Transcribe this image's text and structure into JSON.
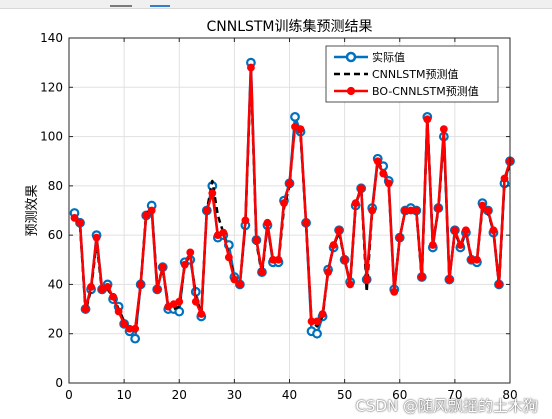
{
  "window": {
    "watermark": "CSDN @随风飘摇的土木狗"
  },
  "chart_data": {
    "type": "line",
    "title": "CNNLSTM训练集预测结果",
    "xlabel": "",
    "ylabel": "预测效果",
    "xlim": [
      0,
      80
    ],
    "ylim": [
      0,
      140
    ],
    "xticks": [
      0,
      10,
      20,
      30,
      40,
      50,
      60,
      70,
      80
    ],
    "yticks": [
      0,
      20,
      40,
      60,
      80,
      100,
      120,
      140
    ],
    "grid": true,
    "legend_position": "top-right",
    "x": [
      1,
      2,
      3,
      4,
      5,
      6,
      7,
      8,
      9,
      10,
      11,
      12,
      13,
      14,
      15,
      16,
      17,
      18,
      19,
      20,
      21,
      22,
      23,
      24,
      25,
      26,
      27,
      28,
      29,
      30,
      31,
      32,
      33,
      34,
      35,
      36,
      37,
      38,
      39,
      40,
      41,
      42,
      43,
      44,
      45,
      46,
      47,
      48,
      49,
      50,
      51,
      52,
      53,
      54,
      55,
      56,
      57,
      58,
      59,
      60,
      61,
      62,
      63,
      64,
      65,
      66,
      67,
      68,
      69,
      70,
      71,
      72,
      73,
      74,
      75,
      76,
      77,
      78,
      79,
      80
    ],
    "series": [
      {
        "name": "实际值",
        "color": "#0072BD",
        "style": "solid-circle-open",
        "values": [
          69,
          65,
          30,
          38,
          60,
          38,
          40,
          34,
          31,
          24,
          21,
          18,
          40,
          68,
          72,
          38,
          47,
          30,
          30,
          29,
          49,
          50,
          37,
          27,
          70,
          80,
          59,
          60,
          56,
          43,
          40,
          64,
          130,
          58,
          45,
          64,
          49,
          49,
          74,
          81,
          108,
          102,
          65,
          21,
          20,
          27,
          46,
          55,
          62,
          50,
          41,
          72,
          79,
          42,
          71,
          91,
          88,
          82,
          38,
          59,
          70,
          71,
          70,
          43,
          108,
          55,
          71,
          100,
          42,
          62,
          55,
          61,
          50,
          49,
          73,
          70,
          61,
          40,
          81,
          90
        ]
      },
      {
        "name": "CNNLSTM预测值",
        "color": "#000000",
        "style": "dashed",
        "values": [
          67,
          64,
          29,
          38,
          57,
          37,
          38,
          35,
          30,
          25,
          22,
          21,
          40,
          69,
          70,
          40,
          46,
          32,
          30,
          31,
          48,
          52,
          35,
          28,
          70,
          82,
          68,
          61,
          52,
          43,
          40,
          65,
          126,
          57,
          44,
          64,
          50,
          49,
          71,
          80,
          105,
          101,
          65,
          25,
          23,
          27,
          45,
          56,
          61,
          50,
          40,
          72,
          80,
          37,
          70,
          90,
          86,
          80,
          37,
          59,
          70,
          70,
          70,
          42,
          107,
          57,
          70,
          101,
          43,
          61,
          56,
          61,
          51,
          50,
          71,
          69,
          62,
          40,
          82,
          89
        ]
      },
      {
        "name": "BO-CNNLSTM预测值",
        "color": "#FF0000",
        "style": "solid-dot",
        "values": [
          67,
          65,
          30,
          39,
          59,
          38,
          39,
          35,
          29,
          24,
          22,
          22,
          40,
          68,
          70,
          38,
          47,
          31,
          32,
          33,
          48,
          53,
          33,
          28,
          70,
          77,
          60,
          61,
          51,
          42,
          40,
          66,
          128,
          58,
          45,
          65,
          50,
          50,
          73,
          81,
          104,
          103,
          65,
          25,
          25,
          28,
          45,
          56,
          62,
          50,
          40,
          73,
          79,
          42,
          70,
          90,
          85,
          81,
          37,
          59,
          70,
          70,
          70,
          43,
          107,
          56,
          71,
          103,
          42,
          62,
          56,
          62,
          50,
          50,
          72,
          70,
          62,
          40,
          83,
          90
        ]
      }
    ]
  }
}
